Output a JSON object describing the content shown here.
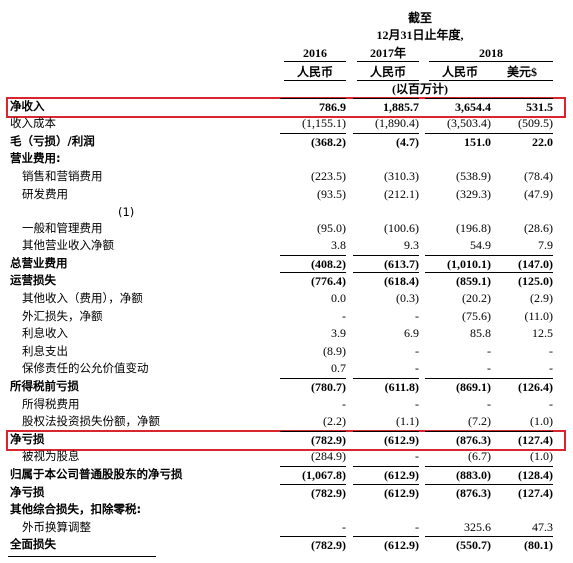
{
  "header": {
    "title": "截至",
    "period": "12月31日止年度,",
    "years": [
      "2016",
      "2017年",
      "2018"
    ],
    "currencies": [
      "人民币",
      "人民币",
      "人民币",
      "美元$"
    ],
    "unit": "(以百万计)"
  },
  "table": {
    "rows": [
      {
        "label": "净收入",
        "values": [
          "786.9",
          "1,885.7",
          "3,654.4",
          "531.5"
        ],
        "bold": true,
        "highlight": true
      },
      {
        "label": "收入成本",
        "values": [
          "(1,155.1)",
          "(1,890.4)",
          "(3,503.4)",
          "(509.5)"
        ]
      },
      {
        "label": "毛（亏损）/利润",
        "values": [
          "(368.2)",
          "(4.7)",
          "151.0",
          "22.0"
        ],
        "bold": true
      },
      {
        "label": "营业费用:",
        "bold": true
      },
      {
        "label": "销售和营销费用",
        "values": [
          "(223.5)",
          "(310.3)",
          "(538.9)",
          "(78.4)"
        ],
        "indent": 1
      },
      {
        "label": "研发费用",
        "values": [
          "(93.5)",
          "(212.1)",
          "(329.3)",
          "(47.9)"
        ],
        "indent": 1
      },
      {
        "note": "(1)",
        "label": "一般和管理费用",
        "values": [
          "(95.0)",
          "(100.6)",
          "(196.8)",
          "(28.6)"
        ],
        "indent": 1
      },
      {
        "label": "其他营业收入净额",
        "values": [
          "3.8",
          "9.3",
          "54.9",
          "7.9"
        ],
        "indent": 1
      },
      {
        "label": "总营业费用",
        "values": [
          "(408.2)",
          "(613.7)",
          "(1,010.1)",
          "(147.0)"
        ],
        "bold": true
      },
      {
        "label": "运营损失",
        "values": [
          "(776.4)",
          "(618.4)",
          "(859.1)",
          "(125.0)"
        ],
        "bold": true
      },
      {
        "label": "其他收入（费用），净额",
        "values": [
          "0.0",
          "(0.3)",
          "(20.2)",
          "(2.9)"
        ],
        "indent": 1
      },
      {
        "label": "外汇损失，净额",
        "values": [
          "-",
          "-",
          "(75.6)",
          "(11.0)"
        ],
        "indent": 1
      },
      {
        "label": "利息收入",
        "values": [
          "3.9",
          "6.9",
          "85.8",
          "12.5"
        ],
        "indent": 1
      },
      {
        "label": "利息支出",
        "values": [
          "(8.9)",
          "-",
          "-",
          "-"
        ],
        "indent": 1
      },
      {
        "label": "保修责任的公允价值变动",
        "values": [
          "0.7",
          "-",
          "-",
          "-"
        ],
        "indent": 1
      },
      {
        "label": "所得税前亏损",
        "values": [
          "(780.7)",
          "(611.8)",
          "(869.1)",
          "(126.4)"
        ],
        "bold": true
      },
      {
        "label": "所得税费用",
        "values": [
          "-",
          "-",
          "-",
          "-"
        ],
        "indent": 1
      },
      {
        "label": "股权法投资损失份额，净额",
        "values": [
          "(2.2)",
          "(1.1)",
          "(7.2)",
          "(1.0)"
        ],
        "indent": 1
      },
      {
        "label": "净亏损",
        "values": [
          "(782.9)",
          "(612.9)",
          "(876.3)",
          "(127.4)"
        ],
        "bold": true,
        "highlight": true
      },
      {
        "label": "被视为股息",
        "values": [
          "(284.9)",
          "-",
          "(6.7)",
          "(1.0)"
        ],
        "indent": 1
      },
      {
        "label": "归属于本公司普通股股东的净亏损",
        "values": [
          "(1,067.8)",
          "(612.9)",
          "(883.0)",
          "(128.4)"
        ],
        "bold": true
      },
      {
        "label": "净亏损",
        "values": [
          "(782.9)",
          "(612.9)",
          "(876.3)",
          "(127.4)"
        ],
        "bold": true
      },
      {
        "label": "其他综合损失，扣除零税:",
        "bold": true
      },
      {
        "label": "外币换算调整",
        "values": [
          "-",
          "-",
          "325.6",
          "47.3"
        ],
        "indent": 1
      },
      {
        "label": "全面损失",
        "values": [
          "(782.9)",
          "(612.9)",
          "(550.7)",
          "(80.1)"
        ],
        "bold": true
      }
    ]
  }
}
